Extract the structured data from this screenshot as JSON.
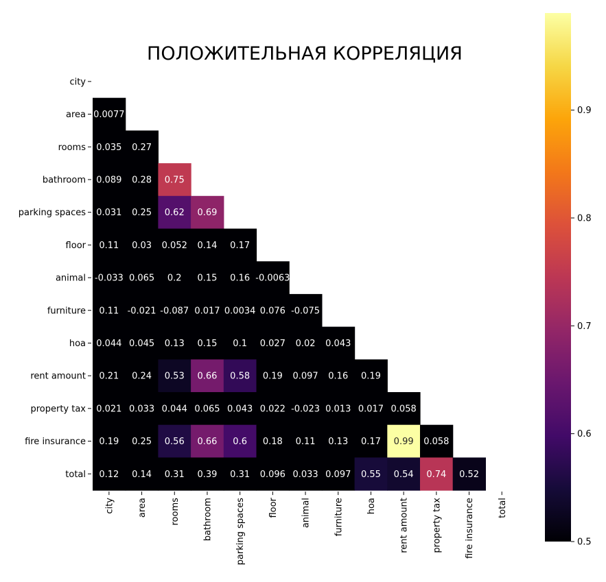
{
  "chart_data": {
    "type": "heatmap",
    "title": "ПОЛОЖИТЕЛЬНАЯ КОРРЕЛЯЦИЯ",
    "variables": [
      "city",
      "area",
      "rooms",
      "bathroom",
      "parking spaces",
      "floor",
      "animal",
      "furniture",
      "hoa",
      "rent amount",
      "property tax",
      "fire insurance",
      "total"
    ],
    "mask": "upper-triangle-including-diagonal",
    "colormap": "inferno",
    "color_range": [
      0.5,
      0.99
    ],
    "colorbar_ticks": [
      "0.5",
      "0.6",
      "0.7",
      "0.8",
      "0.9"
    ],
    "colorbar_tick_values": [
      0.5,
      0.6,
      0.7,
      0.8,
      0.9
    ],
    "lower_triangle": [
      [],
      [
        "0.0077"
      ],
      [
        "0.035",
        "0.27"
      ],
      [
        "0.089",
        "0.28",
        "0.75"
      ],
      [
        "0.031",
        "0.25",
        "0.62",
        "0.69"
      ],
      [
        "0.11",
        "0.03",
        "0.052",
        "0.14",
        "0.17"
      ],
      [
        "-0.033",
        "0.065",
        "0.2",
        "0.15",
        "0.16",
        "-0.0063"
      ],
      [
        "0.11",
        "-0.021",
        "-0.087",
        "0.017",
        "0.0034",
        "0.076",
        "-0.075"
      ],
      [
        "0.044",
        "0.045",
        "0.13",
        "0.15",
        "0.1",
        "0.027",
        "0.02",
        "0.043"
      ],
      [
        "0.21",
        "0.24",
        "0.53",
        "0.66",
        "0.58",
        "0.19",
        "0.097",
        "0.16",
        "0.19"
      ],
      [
        "0.021",
        "0.033",
        "0.044",
        "0.065",
        "0.043",
        "0.022",
        "-0.023",
        "0.013",
        "0.017",
        "0.058"
      ],
      [
        "0.19",
        "0.25",
        "0.56",
        "0.66",
        "0.6",
        "0.18",
        "0.11",
        "0.13",
        "0.17",
        "0.99",
        "0.058"
      ],
      [
        "0.12",
        "0.14",
        "0.31",
        "0.39",
        "0.31",
        "0.096",
        "0.033",
        "0.097",
        "0.55",
        "0.54",
        "0.74",
        "0.52"
      ]
    ]
  }
}
